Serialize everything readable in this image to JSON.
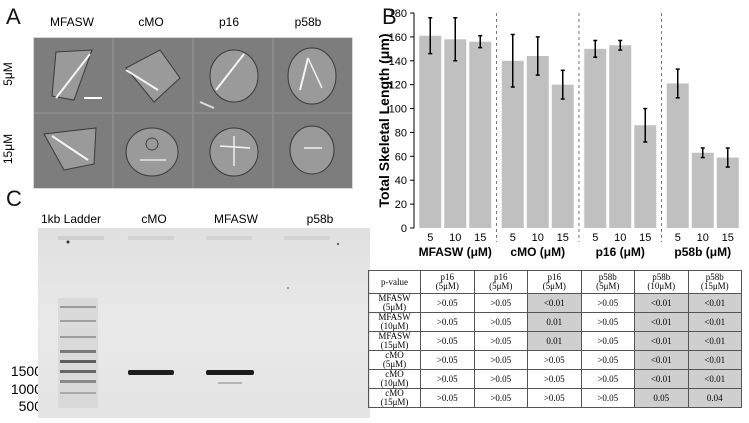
{
  "panels": {
    "a": "A",
    "b": "B",
    "c": "C"
  },
  "panel_a": {
    "columns": [
      "MFASW",
      "cMO",
      "p16",
      "p58b"
    ],
    "rows": [
      "5μM",
      "15μM"
    ]
  },
  "panel_c": {
    "lanes": [
      "1kb Ladder",
      "cMO",
      "MFASW",
      "p58b"
    ],
    "sizes": [
      "1500",
      "1000",
      "500"
    ]
  },
  "chart_data": {
    "type": "bar",
    "ylabel": "Total Skeletal Length (μm)",
    "ylim": [
      0,
      180
    ],
    "yticks": [
      0,
      20,
      40,
      60,
      80,
      100,
      120,
      140,
      160,
      180
    ],
    "groups": [
      {
        "name": "MFASW (μM)",
        "categories": [
          "5",
          "10",
          "15"
        ],
        "values": [
          161,
          158,
          156
        ],
        "errors": [
          15,
          18,
          5
        ]
      },
      {
        "name": "cMO (μM)",
        "categories": [
          "5",
          "10",
          "15"
        ],
        "values": [
          140,
          144,
          120
        ],
        "errors": [
          22,
          16,
          12
        ]
      },
      {
        "name": "p16 (μM)",
        "categories": [
          "5",
          "10",
          "15"
        ],
        "values": [
          150,
          153,
          86
        ],
        "errors": [
          7,
          4,
          14
        ]
      },
      {
        "name": "p58b (μM)",
        "categories": [
          "5",
          "10",
          "15"
        ],
        "values": [
          121,
          63,
          59
        ],
        "errors": [
          12,
          4,
          8
        ]
      }
    ],
    "bar_color": "#c0c0c0",
    "grid": false
  },
  "table": {
    "corner": "p-value",
    "headers": [
      [
        "p16",
        "(5μM)"
      ],
      [
        "p16",
        "(5μM)"
      ],
      [
        "p16",
        "(5μM)"
      ],
      [
        "p58b",
        "(5μM)"
      ],
      [
        "p58b",
        "(10μM)"
      ],
      [
        "p58b",
        "(15μM)"
      ]
    ],
    "rows": [
      {
        "label": [
          "MFASW",
          "(5μM)"
        ],
        "cells": [
          ">0.05",
          ">0.05",
          "<0.01",
          ">0.05",
          "<0.01",
          "<0.01"
        ]
      },
      {
        "label": [
          "MFASW",
          "(10μM)"
        ],
        "cells": [
          ">0.05",
          ">0.05",
          "0.01",
          ">0.05",
          "<0.01",
          "<0.01"
        ]
      },
      {
        "label": [
          "MFASW",
          "(15μM)"
        ],
        "cells": [
          ">0.05",
          ">0.05",
          "0.01",
          ">0.05",
          "<0.01",
          "<0.01"
        ]
      },
      {
        "label": [
          "cMO",
          "(5μM)"
        ],
        "cells": [
          ">0.05",
          ">0.05",
          ">0.05",
          ">0.05",
          "<0.01",
          "<0.01"
        ]
      },
      {
        "label": [
          "cMO",
          "(10μM)"
        ],
        "cells": [
          ">0.05",
          ">0.05",
          ">0.05",
          ">0.05",
          "<0.01",
          "<0.01"
        ]
      },
      {
        "label": [
          "cMO",
          "(15μM)"
        ],
        "cells": [
          ">0.05",
          ">0.05",
          ">0.05",
          ">0.05",
          "0.05",
          "0.04"
        ]
      }
    ],
    "shaded": [
      [
        false,
        false,
        true,
        false,
        true,
        true
      ],
      [
        false,
        false,
        true,
        false,
        true,
        true
      ],
      [
        false,
        false,
        true,
        false,
        true,
        true
      ],
      [
        false,
        false,
        false,
        false,
        true,
        true
      ],
      [
        false,
        false,
        false,
        false,
        true,
        true
      ],
      [
        false,
        false,
        false,
        false,
        true,
        true
      ]
    ]
  }
}
